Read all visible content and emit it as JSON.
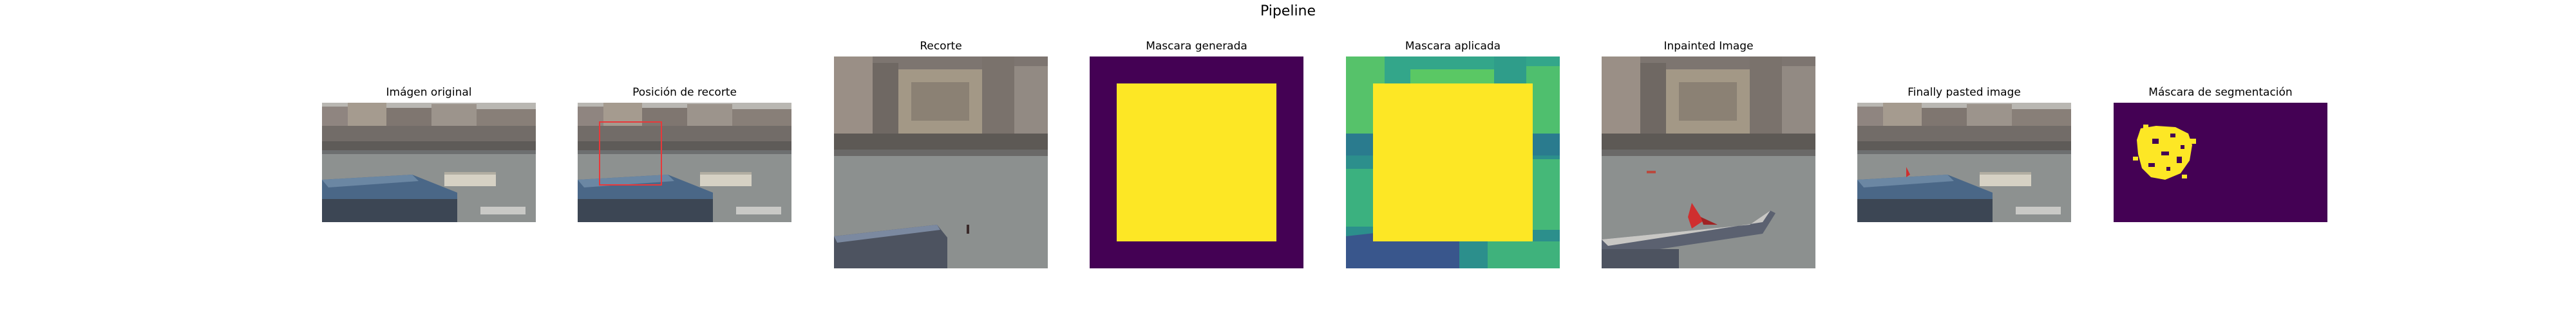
{
  "figure": {
    "title": "Pipeline",
    "panels": [
      {
        "id": "original",
        "title": "Imágen original"
      },
      {
        "id": "crop-position",
        "title": "Posición de recorte"
      },
      {
        "id": "crop",
        "title": "Recorte"
      },
      {
        "id": "generated-mask",
        "title": "Mascara generada"
      },
      {
        "id": "applied-mask",
        "title": "Mascara aplicada"
      },
      {
        "id": "inpainted",
        "title": "Inpainted Image"
      },
      {
        "id": "pasted",
        "title": "Finally pasted image"
      },
      {
        "id": "segmentation-mask",
        "title": "Máscara de segmentación"
      }
    ]
  },
  "colors": {
    "mask_background": "#440154",
    "mask_foreground": "#fde725",
    "crop_box": "#e8383a",
    "water": "#8d9190",
    "building_roof": "#4a6787",
    "bird": "#cf2f2f"
  }
}
